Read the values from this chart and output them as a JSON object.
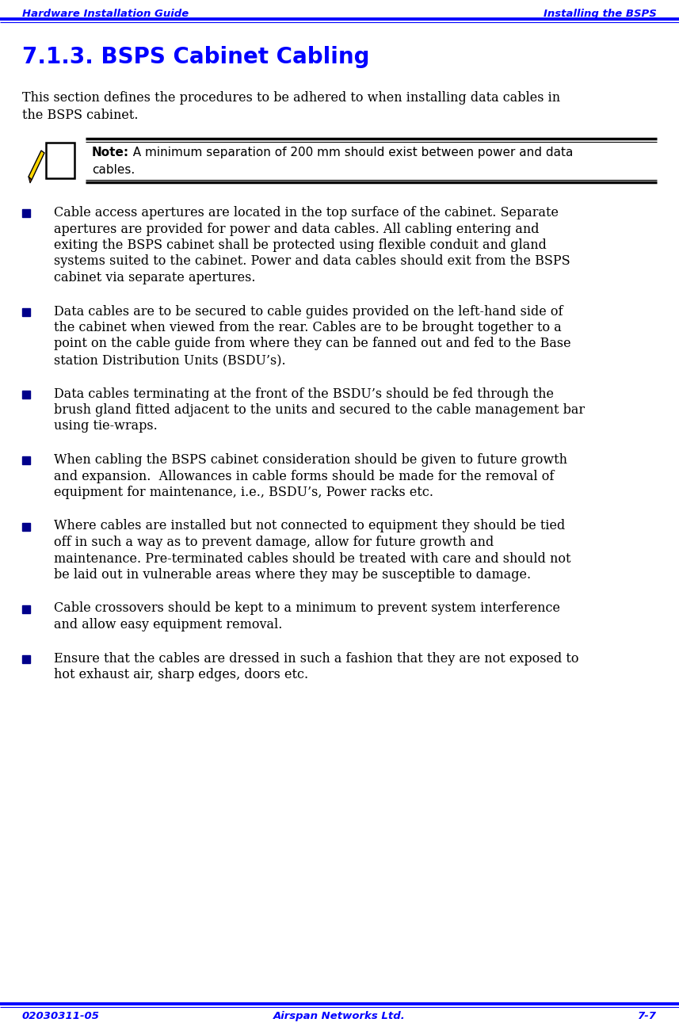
{
  "header_left": "Hardware Installation Guide",
  "header_right": "Installing the BSPS",
  "header_color": "#0000FF",
  "title": "7.1.3. BSPS Cabinet Cabling",
  "title_color": "#0000FF",
  "note_bold": "Note:",
  "note_line1": "  A minimum separation of 200 mm should exist between power and data",
  "note_line2": "cables.",
  "bullet_color": "#00008B",
  "intro_line1": "This section defines the procedures to be adhered to when installing data cables in",
  "intro_line2": "the BSPS cabinet.",
  "bullets_wrapped": [
    [
      "Cable access apertures are located in the top surface of the cabinet. Separate",
      "apertures are provided for power and data cables. All cabling entering and",
      "exiting the BSPS cabinet shall be protected using flexible conduit and gland",
      "systems suited to the cabinet. Power and data cables should exit from the BSPS",
      "cabinet via separate apertures."
    ],
    [
      "Data cables are to be secured to cable guides provided on the left-hand side of",
      "the cabinet when viewed from the rear. Cables are to be brought together to a",
      "point on the cable guide from where they can be fanned out and fed to the Base",
      "station Distribution Units (BSDU’s)."
    ],
    [
      "Data cables terminating at the front of the BSDU’s should be fed through the",
      "brush gland fitted adjacent to the units and secured to the cable management bar",
      "using tie-wraps."
    ],
    [
      "When cabling the BSPS cabinet consideration should be given to future growth",
      "and expansion.  Allowances in cable forms should be made for the removal of",
      "equipment for maintenance, i.e., BSDU’s, Power racks etc."
    ],
    [
      "Where cables are installed but not connected to equipment they should be tied",
      "off in such a way as to prevent damage, allow for future growth and",
      "maintenance. Pre-terminated cables should be treated with care and should not",
      "be laid out in vulnerable areas where they may be susceptible to damage."
    ],
    [
      "Cable crossovers should be kept to a minimum to prevent system interference",
      "and allow easy equipment removal."
    ],
    [
      "Ensure that the cables are dressed in such a fashion that they are not exposed to",
      "hot exhaust air, sharp edges, doors etc."
    ]
  ],
  "footer_left": "02030311-05",
  "footer_center": "Airspan Networks Ltd.",
  "footer_right": "7-7",
  "footer_color": "#0000FF",
  "bg_color": "#FFFFFF",
  "text_color": "#000000"
}
